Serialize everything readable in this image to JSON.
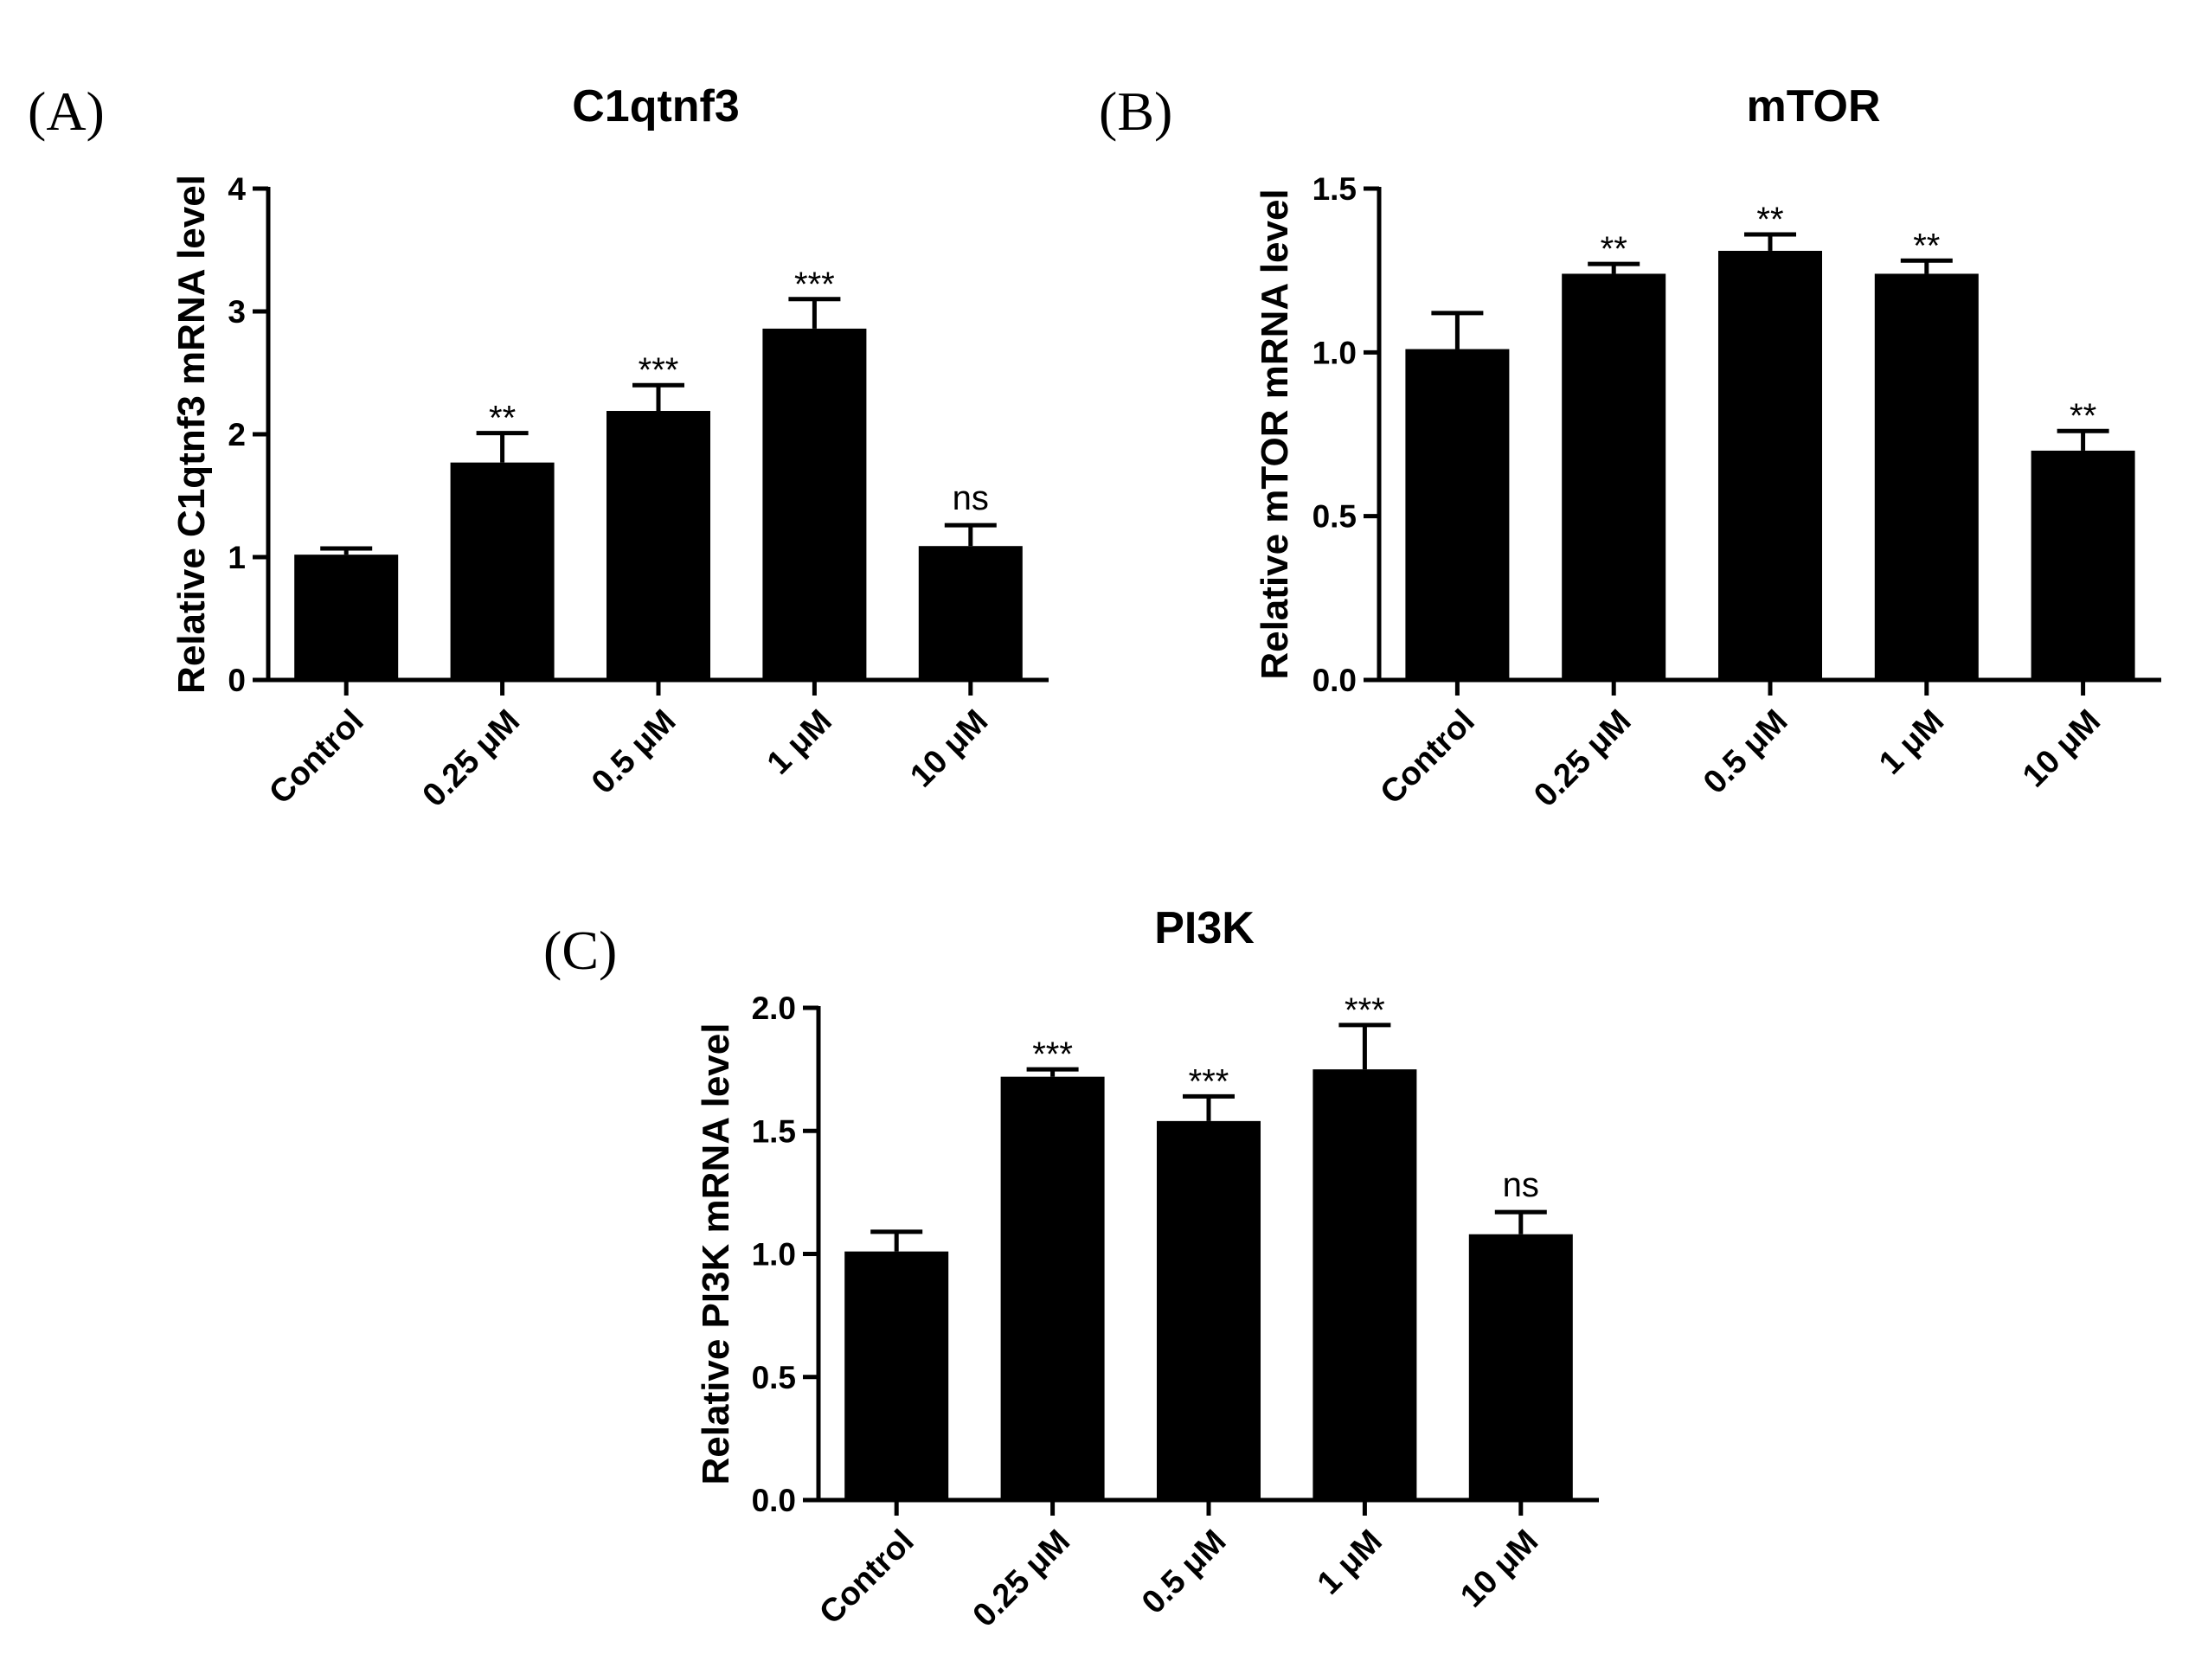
{
  "chart_data": [
    {
      "panel": "(A)",
      "type": "bar",
      "title": "C1qtnf3",
      "ylabel": "Relative C1qtnf3 mRNA  level",
      "xlabel": "",
      "categories": [
        "Control",
        "0.25 μM",
        "0.5 μM",
        "1 μM",
        "10 μM"
      ],
      "values": [
        1.02,
        1.77,
        2.19,
        2.86,
        1.09
      ],
      "errors": [
        0.05,
        0.24,
        0.21,
        0.24,
        0.17
      ],
      "significance": [
        "",
        "**",
        "***",
        "***",
        "ns"
      ],
      "ylim": [
        0,
        4
      ],
      "yticks": [
        0,
        1,
        2,
        3,
        4
      ],
      "ytick_labels": [
        "0",
        "1",
        "2",
        "3",
        "4"
      ],
      "grid": false,
      "color": "#000000"
    },
    {
      "panel": "(B)",
      "type": "bar",
      "title": "mTOR",
      "ylabel": "Relative mTOR mRNA  level",
      "xlabel": "",
      "categories": [
        "Control",
        "0.25 μM",
        "0.5 μM",
        "1 μM",
        "10 μM"
      ],
      "values": [
        1.01,
        1.24,
        1.31,
        1.24,
        0.7
      ],
      "errors": [
        0.11,
        0.03,
        0.05,
        0.04,
        0.06
      ],
      "significance": [
        "",
        "**",
        "**",
        "**",
        "**"
      ],
      "ylim": [
        0,
        1.5
      ],
      "yticks": [
        0,
        0.5,
        1.0,
        1.5
      ],
      "ytick_labels": [
        "0.0",
        "0.5",
        "1.0",
        "1.5"
      ],
      "grid": false,
      "color": "#000000"
    },
    {
      "panel": "(C)",
      "type": "bar",
      "title": "PI3K",
      "ylabel": "Relative PI3K mRNA  level",
      "xlabel": "",
      "categories": [
        "Control",
        "0.25 μM",
        "0.5 μM",
        "1 μM",
        "10 μM"
      ],
      "values": [
        1.01,
        1.72,
        1.54,
        1.75,
        1.08
      ],
      "errors": [
        0.08,
        0.03,
        0.1,
        0.18,
        0.09
      ],
      "significance": [
        "",
        "***",
        "***",
        "***",
        "ns"
      ],
      "ylim": [
        0,
        2.0
      ],
      "yticks": [
        0,
        0.5,
        1.0,
        1.5,
        2.0
      ],
      "ytick_labels": [
        "0.0",
        "0.5",
        "1.0",
        "1.5",
        "2.0"
      ],
      "grid": false,
      "color": "#000000"
    }
  ]
}
